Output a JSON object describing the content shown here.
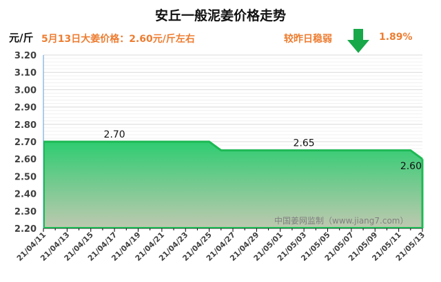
{
  "header": {
    "title": "安丘一般泥姜价格走势",
    "unit": "元/斤",
    "price_note": "5月13日大姜价格：2.60元/斤左右",
    "change_label": "较昨日稳弱",
    "change_icon": "down-arrow-icon",
    "change_pct": "1.89%"
  },
  "watermark": "中国姜网监制（www.jiang7.com）",
  "colors": {
    "accent_text": "#ED7D31",
    "line": "#1DB954",
    "fill_top": "#2ECC71",
    "fill_bottom": "#BFC9B0",
    "arrow": "#17A84A"
  },
  "chart_data": {
    "type": "area",
    "title": "安丘一般泥姜价格走势",
    "ylabel": "元/斤",
    "xlabel": "",
    "ylim": [
      2.2,
      3.2
    ],
    "yticks": [
      "3.20",
      "3.10",
      "3.00",
      "2.90",
      "2.80",
      "2.70",
      "2.60",
      "2.50",
      "2.40",
      "2.30",
      "2.20"
    ],
    "xticks": [
      "21/04/11",
      "21/04/13",
      "21/04/15",
      "21/04/17",
      "21/04/19",
      "21/04/21",
      "21/04/23",
      "21/04/25",
      "21/04/27",
      "21/04/29",
      "21/05/01",
      "21/05/03",
      "21/05/05",
      "21/05/07",
      "21/05/09",
      "21/05/11",
      "21/05/13"
    ],
    "grid": true,
    "series": [
      {
        "name": "安丘一般泥姜价格",
        "x": [
          "21/04/11",
          "21/04/25",
          "21/04/26",
          "21/05/12",
          "21/05/13"
        ],
        "values": [
          2.7,
          2.7,
          2.65,
          2.65,
          2.6
        ]
      }
    ],
    "data_labels": [
      {
        "x": "21/04/17",
        "text": "2.70"
      },
      {
        "x": "21/05/03",
        "text": "2.65"
      },
      {
        "x": "21/05/13",
        "text": "2.60"
      }
    ]
  }
}
